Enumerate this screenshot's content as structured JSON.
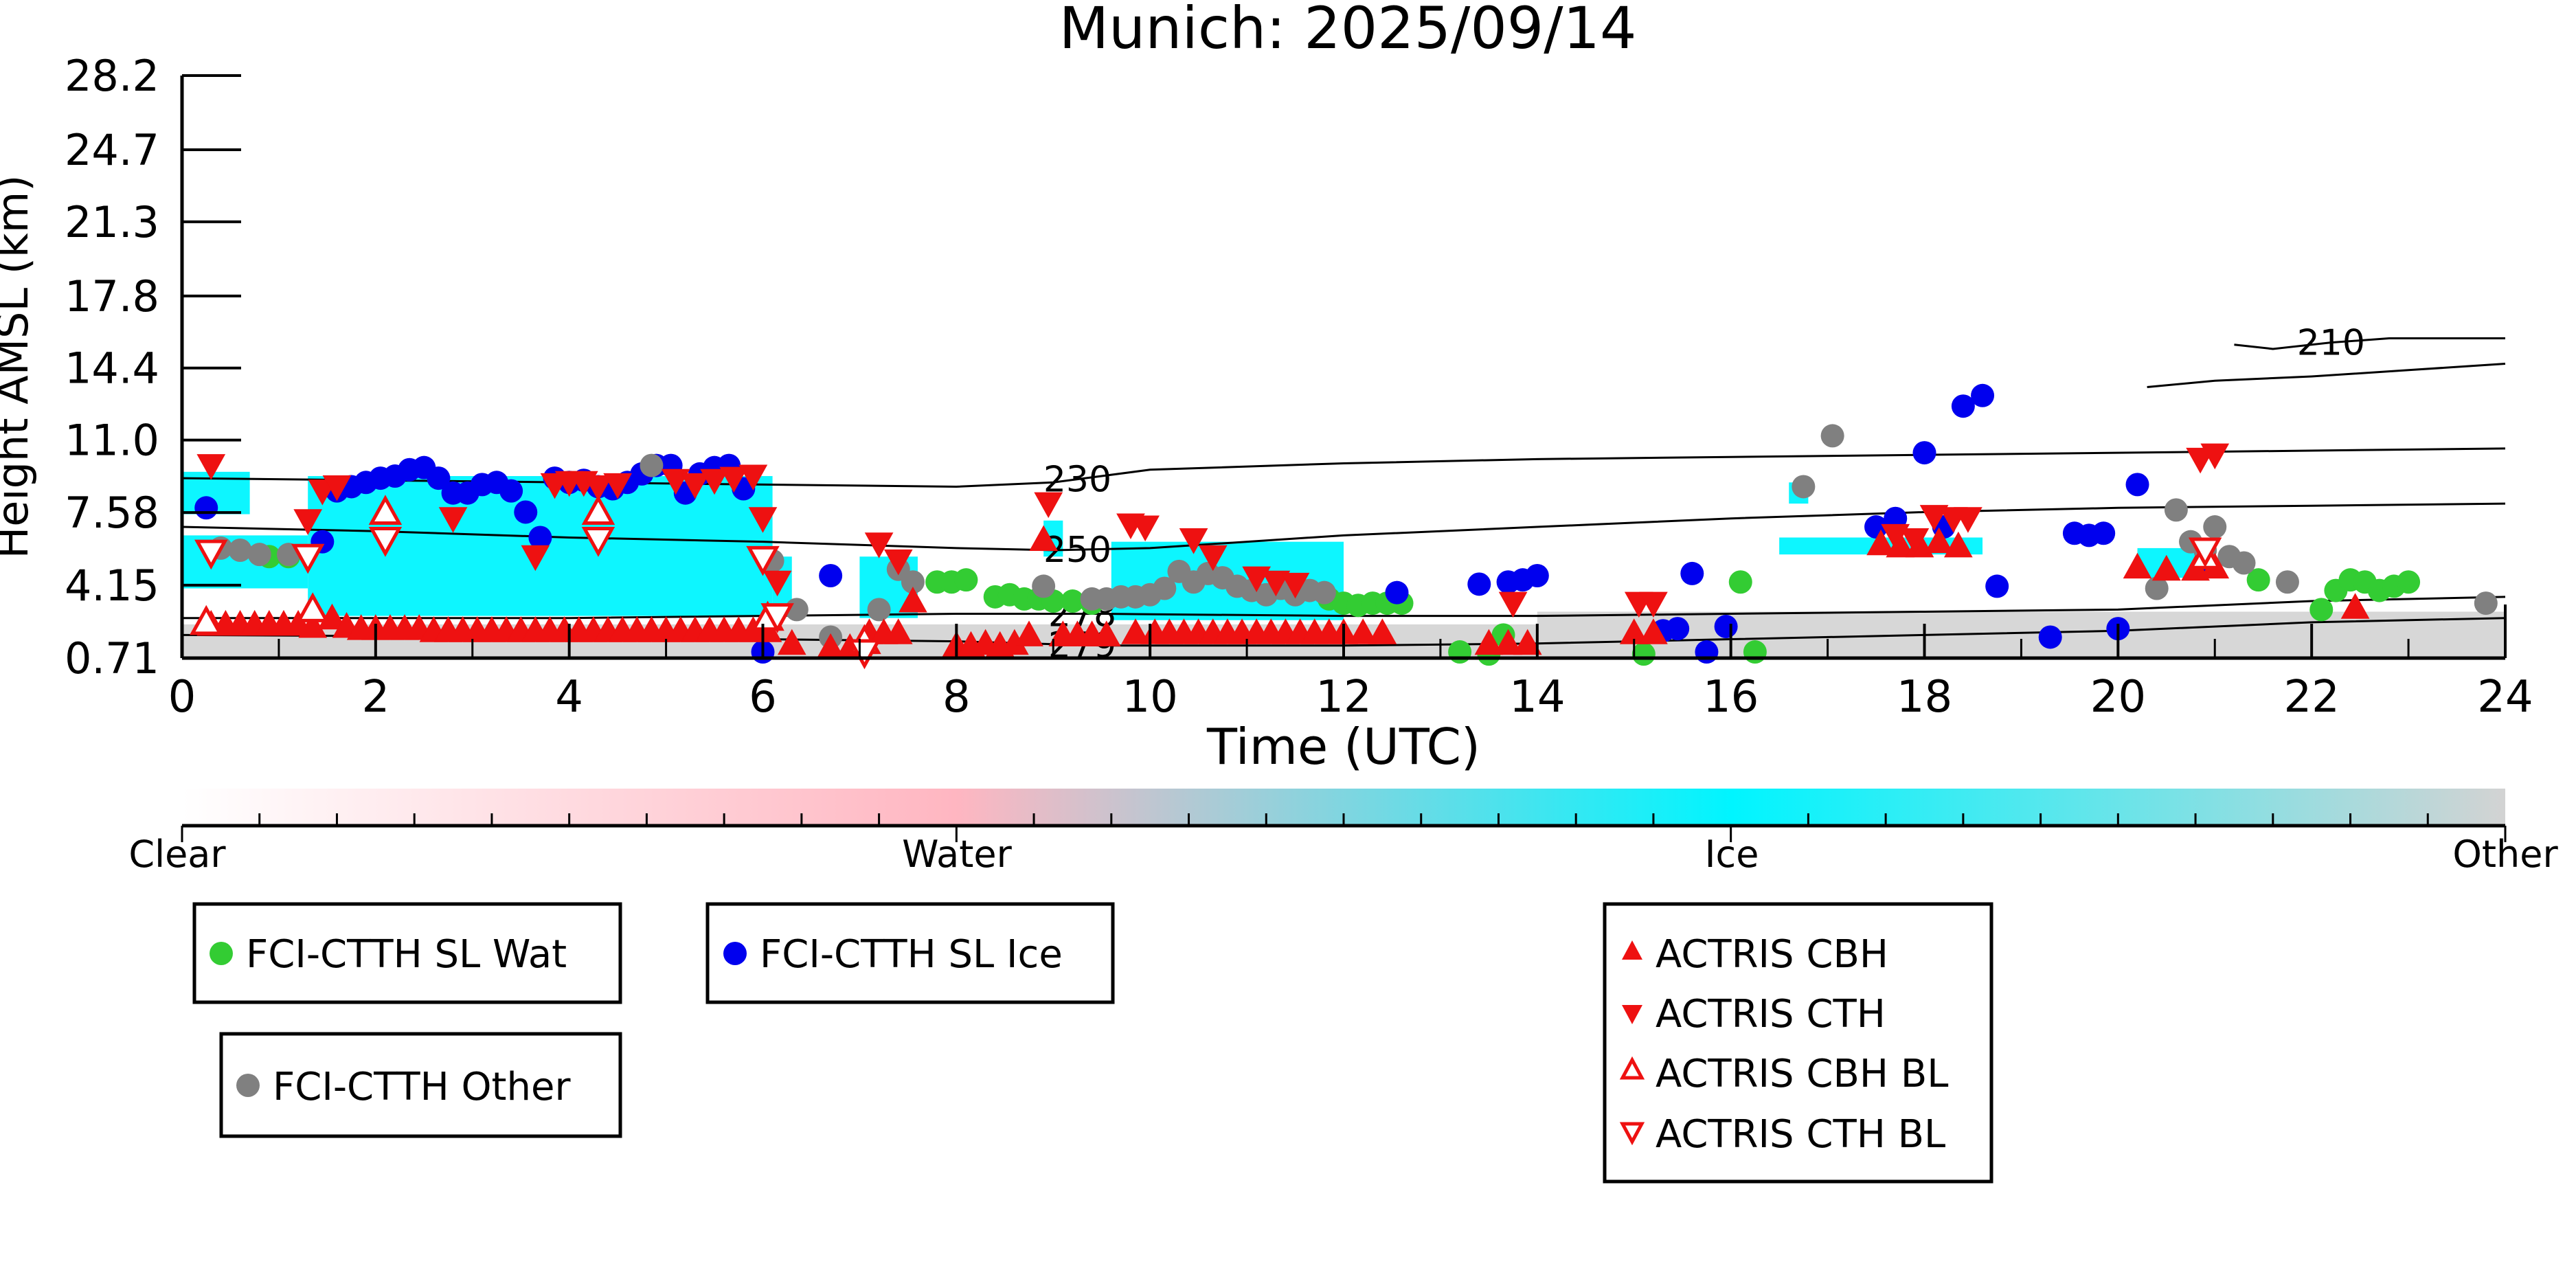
{
  "chart_data": {
    "type": "scatter",
    "title": "Munich: 2025/09/14",
    "xlabel": "Time (UTC)",
    "ylabel": "Height AMSL (km)",
    "xlim": [
      0,
      24
    ],
    "ylim": [
      0.71,
      28.2
    ],
    "xticks": [
      0,
      2,
      4,
      6,
      8,
      10,
      12,
      14,
      16,
      18,
      20,
      22,
      24
    ],
    "yticks": [
      "0.71",
      "4.15",
      "7.58",
      "11.0",
      "14.4",
      "17.8",
      "21.3",
      "24.7",
      "28.2"
    ],
    "grid": false,
    "background_classification": {
      "description_colorbar": [
        "Clear",
        "Water",
        "Ice",
        "Other"
      ],
      "colors": {
        "Clear": "#ffffff",
        "Water": "#ffb6c1",
        "Ice": "#00f5ff",
        "Other": "#d3d3d3"
      },
      "regions": [
        {
          "class": "Ice",
          "x0": 0.0,
          "x1": 0.7,
          "y0": 7.5,
          "y1": 9.5
        },
        {
          "class": "Ice",
          "x0": 0.0,
          "x1": 1.3,
          "y0": 4.0,
          "y1": 6.5
        },
        {
          "class": "Ice",
          "x0": 1.3,
          "x1": 6.1,
          "y0": 2.7,
          "y1": 9.3
        },
        {
          "class": "Ice",
          "x0": 6.1,
          "x1": 6.3,
          "y0": 3.0,
          "y1": 5.5
        },
        {
          "class": "Ice",
          "x0": 7.0,
          "x1": 7.6,
          "y0": 2.6,
          "y1": 5.5
        },
        {
          "class": "Ice",
          "x0": 8.9,
          "x1": 9.1,
          "y0": 5.5,
          "y1": 7.2
        },
        {
          "class": "Ice",
          "x0": 9.6,
          "x1": 12.0,
          "y0": 2.5,
          "y1": 6.2
        },
        {
          "class": "Ice",
          "x0": 16.6,
          "x1": 16.8,
          "y0": 8.0,
          "y1": 9.0
        },
        {
          "class": "Ice",
          "x0": 16.5,
          "x1": 18.6,
          "y0": 5.6,
          "y1": 6.4
        },
        {
          "class": "Ice",
          "x0": 20.2,
          "x1": 21.0,
          "y0": 4.5,
          "y1": 5.9
        },
        {
          "class": "Other",
          "x0": 0.0,
          "x1": 24.0,
          "y0": 0.71,
          "y1": 2.3
        },
        {
          "class": "Other",
          "x0": 14.0,
          "x1": 24.0,
          "y0": 2.3,
          "y1": 2.9
        }
      ]
    },
    "contour_lines": [
      {
        "label": "210",
        "x": [
          21.2,
          21.6,
          22.2,
          22.8,
          24.0
        ],
        "y": [
          15.5,
          15.3,
          15.6,
          15.8,
          15.8
        ]
      },
      {
        "label": "210",
        "x": [
          20.3,
          21.0,
          22.0,
          23.0,
          24.0
        ],
        "y": [
          13.5,
          13.8,
          14.0,
          14.3,
          14.6
        ]
      },
      {
        "label": "230",
        "x": [
          0,
          2,
          4,
          6,
          8,
          9,
          10,
          12,
          14,
          16,
          18,
          20,
          22,
          24
        ],
        "y": [
          9.2,
          9.1,
          9.0,
          8.9,
          8.8,
          9.0,
          9.6,
          9.9,
          10.1,
          10.2,
          10.3,
          10.4,
          10.5,
          10.6
        ]
      },
      {
        "label": "250",
        "x": [
          0,
          2,
          4,
          6,
          8,
          9,
          10,
          12,
          14,
          16,
          18,
          20,
          22,
          24
        ],
        "y": [
          6.9,
          6.7,
          6.4,
          6.2,
          5.9,
          5.8,
          5.9,
          6.5,
          6.9,
          7.3,
          7.6,
          7.8,
          7.9,
          8.0
        ]
      },
      {
        "label": "278",
        "x": [
          0,
          4,
          8,
          9.5,
          12,
          14,
          16,
          18,
          20,
          22,
          24
        ],
        "y": [
          2.6,
          2.6,
          2.8,
          2.8,
          2.7,
          2.7,
          2.8,
          2.9,
          3.0,
          3.4,
          3.6
        ]
      },
      {
        "label": "279",
        "x": [
          0,
          4,
          8,
          9.5,
          12,
          14,
          16,
          18,
          20,
          22,
          24
        ],
        "y": [
          1.8,
          1.7,
          1.5,
          1.3,
          1.3,
          1.4,
          1.6,
          1.8,
          2.0,
          2.4,
          2.6
        ]
      }
    ],
    "series": [
      {
        "name": "FCI-CTTH SL Wat",
        "marker": "circle",
        "color": "#33cc33",
        "x": [
          0.9,
          1.1,
          7.8,
          7.95,
          8.1,
          8.4,
          8.55,
          8.7,
          8.85,
          9.0,
          9.2,
          9.4,
          11.85,
          12.0,
          12.15,
          12.3,
          12.45,
          12.6,
          13.2,
          13.5,
          13.65,
          15.1,
          16.1,
          16.25,
          21.45,
          22.1,
          22.25,
          22.4,
          22.55,
          22.7,
          22.85,
          23.0
        ],
        "y": [
          5.5,
          5.5,
          4.3,
          4.3,
          4.4,
          3.6,
          3.7,
          3.5,
          3.5,
          3.4,
          3.4,
          3.3,
          3.5,
          3.3,
          3.2,
          3.3,
          3.3,
          3.3,
          1.0,
          0.9,
          1.8,
          0.9,
          4.3,
          1.0,
          4.4,
          3.0,
          3.9,
          4.4,
          4.3,
          3.9,
          4.1,
          4.3
        ]
      },
      {
        "name": "FCI-CTTH SL Ice",
        "marker": "circle",
        "color": "#0000ee",
        "x": [
          0.25,
          1.45,
          1.6,
          1.75,
          1.9,
          2.05,
          2.2,
          2.35,
          2.5,
          2.65,
          2.8,
          2.95,
          3.1,
          3.25,
          3.4,
          3.55,
          3.7,
          3.85,
          4.0,
          4.15,
          4.3,
          4.45,
          4.6,
          4.75,
          4.9,
          5.05,
          5.2,
          5.35,
          5.5,
          5.65,
          5.8,
          6.0,
          6.7,
          12.55,
          13.4,
          13.7,
          13.85,
          14.0,
          15.3,
          15.45,
          15.6,
          15.75,
          15.95,
          17.5,
          17.7,
          18.0,
          18.2,
          18.4,
          18.6,
          18.75,
          19.3,
          19.55,
          19.7,
          19.85,
          20.0,
          20.2,
          20.9
        ],
        "y": [
          7.8,
          6.2,
          8.6,
          8.8,
          9.0,
          9.2,
          9.3,
          9.6,
          9.7,
          9.2,
          8.5,
          8.5,
          8.9,
          9.0,
          8.6,
          7.6,
          6.4,
          9.2,
          9.0,
          9.1,
          8.8,
          8.7,
          9.0,
          9.4,
          9.8,
          9.8,
          8.5,
          9.4,
          9.7,
          9.8,
          8.7,
          1.0,
          4.6,
          3.8,
          4.2,
          4.3,
          4.4,
          4.6,
          2.0,
          2.1,
          4.7,
          1.0,
          2.2,
          6.9,
          7.3,
          10.4,
          6.9,
          12.6,
          13.1,
          4.1,
          1.7,
          6.6,
          6.5,
          6.6,
          2.1,
          8.9,
          5.2
        ]
      },
      {
        "name": "FCI-CTTH Other",
        "marker": "circle",
        "color": "#808080",
        "x": [
          0.4,
          0.6,
          0.8,
          1.1,
          6.1,
          6.35,
          6.7,
          7.2,
          7.4,
          7.55,
          8.9,
          9.4,
          9.55,
          9.7,
          9.85,
          10.0,
          10.15,
          10.3,
          10.45,
          10.6,
          10.75,
          10.9,
          11.05,
          11.2,
          11.35,
          11.5,
          11.65,
          11.8,
          4.85,
          17.05,
          16.75,
          20.4,
          20.6,
          20.75,
          20.9,
          21.0,
          21.15,
          21.3,
          21.75,
          23.8
        ],
        "y": [
          5.9,
          5.8,
          5.6,
          5.6,
          5.3,
          3.0,
          1.7,
          3.0,
          4.9,
          4.3,
          4.1,
          3.5,
          3.5,
          3.6,
          3.6,
          3.7,
          4.0,
          4.8,
          4.3,
          4.7,
          4.5,
          4.1,
          3.9,
          3.7,
          4.0,
          3.7,
          3.9,
          3.8,
          9.8,
          11.2,
          8.8,
          4.0,
          7.7,
          6.2,
          5.8,
          6.9,
          5.5,
          5.2,
          4.3,
          3.3
        ]
      },
      {
        "name": "ACTRIS CBH",
        "marker": "triangle-up",
        "color": "#ee1111",
        "filled": true,
        "x": [
          0.3,
          0.45,
          0.6,
          0.75,
          0.9,
          1.05,
          1.2,
          1.35,
          1.55,
          1.7,
          1.85,
          2.0,
          2.15,
          2.3,
          2.45,
          2.6,
          2.75,
          2.9,
          3.05,
          3.2,
          3.35,
          3.5,
          3.65,
          3.8,
          3.95,
          4.1,
          4.25,
          4.4,
          4.55,
          4.7,
          4.85,
          5.0,
          5.15,
          5.3,
          5.45,
          5.6,
          5.75,
          5.9,
          6.05,
          6.3,
          6.7,
          6.9,
          7.1,
          7.25,
          7.4,
          7.55,
          8.0,
          8.15,
          8.3,
          8.45,
          8.6,
          8.75,
          8.9,
          9.1,
          9.25,
          9.4,
          9.55,
          9.85,
          10.05,
          10.2,
          10.35,
          10.5,
          10.65,
          10.8,
          10.95,
          11.1,
          11.25,
          11.4,
          11.55,
          11.7,
          11.85,
          12.0,
          12.2,
          12.4,
          13.5,
          13.7,
          13.9,
          15.0,
          15.2,
          17.55,
          17.75,
          17.95,
          18.15,
          18.35,
          20.2,
          20.5,
          20.8,
          21.0,
          22.45
        ],
        "y": [
          2.3,
          2.3,
          2.3,
          2.3,
          2.3,
          2.3,
          2.3,
          2.2,
          2.6,
          2.2,
          2.1,
          2.1,
          2.1,
          2.1,
          2.1,
          2.0,
          2.0,
          2.0,
          2.0,
          2.0,
          2.0,
          2.0,
          2.0,
          2.0,
          2.0,
          2.0,
          2.0,
          2.0,
          2.0,
          2.0,
          2.0,
          2.0,
          2.0,
          2.0,
          2.0,
          2.0,
          2.0,
          2.0,
          2.0,
          1.4,
          1.2,
          1.2,
          1.9,
          1.9,
          1.9,
          3.4,
          1.3,
          1.3,
          1.4,
          1.3,
          1.4,
          1.8,
          6.3,
          1.8,
          1.8,
          1.8,
          1.8,
          1.9,
          1.9,
          1.9,
          1.9,
          1.9,
          1.9,
          1.9,
          1.9,
          1.9,
          1.9,
          1.9,
          1.9,
          1.9,
          1.9,
          1.9,
          1.9,
          1.9,
          1.4,
          1.4,
          1.4,
          1.9,
          1.9,
          6.1,
          6.0,
          6.0,
          6.2,
          6.0,
          5.0,
          4.9,
          4.9,
          5.0,
          3.1
        ]
      },
      {
        "name": "ACTRIS CTH",
        "marker": "triangle-down",
        "color": "#ee1111",
        "filled": true,
        "x": [
          0.3,
          1.3,
          1.45,
          1.6,
          2.8,
          3.65,
          3.85,
          4.0,
          4.15,
          4.3,
          4.5,
          5.1,
          5.3,
          5.5,
          5.7,
          5.9,
          6.0,
          6.15,
          7.2,
          7.4,
          8.95,
          9.8,
          9.95,
          10.45,
          10.65,
          11.1,
          11.3,
          11.5,
          13.75,
          15.05,
          15.2,
          17.7,
          17.9,
          18.1,
          18.3,
          18.45,
          20.85,
          21.0
        ],
        "y": [
          9.8,
          7.2,
          8.6,
          8.8,
          7.3,
          5.5,
          8.9,
          9.0,
          9.0,
          8.8,
          8.9,
          9.1,
          8.9,
          9.1,
          9.2,
          9.3,
          7.3,
          4.3,
          6.1,
          5.3,
          8.0,
          7.0,
          6.9,
          6.3,
          5.5,
          4.5,
          4.3,
          4.2,
          3.3,
          3.3,
          3.3,
          6.5,
          6.3,
          7.4,
          7.3,
          7.3,
          10.1,
          10.3
        ]
      },
      {
        "name": "ACTRIS CBH BL",
        "marker": "triangle-up",
        "color": "#ee1111",
        "filled": false,
        "x": [
          0.25,
          1.35,
          2.1,
          4.3,
          6.05,
          7.05,
          20.9
        ],
        "y": [
          2.4,
          3.0,
          7.6,
          7.6,
          2.6,
          1.5,
          5.5
        ]
      },
      {
        "name": "ACTRIS CTH BL",
        "marker": "triangle-down",
        "color": "#ee1111",
        "filled": false,
        "x": [
          0.3,
          1.3,
          2.1,
          4.3,
          6.0,
          6.15,
          7.05,
          20.9
        ],
        "y": [
          5.7,
          5.5,
          6.3,
          6.3,
          5.4,
          2.7,
          1.0,
          5.8
        ]
      }
    ]
  },
  "colorbar": {
    "labels": [
      "Clear",
      "Water",
      "Ice",
      "Other"
    ],
    "colors": [
      "#ffffff",
      "#ffb6c1",
      "#00f5ff",
      "#d3d3d3"
    ]
  },
  "legends": [
    {
      "entries": [
        {
          "label": "FCI-CTTH SL Wat",
          "color": "#33cc33",
          "marker": "circle"
        }
      ]
    },
    {
      "entries": [
        {
          "label": "FCI-CTTH SL Ice",
          "color": "#0000ee",
          "marker": "circle"
        }
      ]
    },
    {
      "entries": [
        {
          "label": "FCI-CTTH Other",
          "color": "#808080",
          "marker": "circle"
        }
      ]
    },
    {
      "entries": [
        {
          "label": "ACTRIS CBH",
          "color": "#ee1111",
          "marker": "triangle-up-filled"
        },
        {
          "label": "ACTRIS CTH",
          "color": "#ee1111",
          "marker": "triangle-down-filled"
        },
        {
          "label": "ACTRIS CBH BL",
          "color": "#ee1111",
          "marker": "triangle-up-open"
        },
        {
          "label": "ACTRIS CTH BL",
          "color": "#ee1111",
          "marker": "triangle-down-open"
        }
      ]
    }
  ]
}
